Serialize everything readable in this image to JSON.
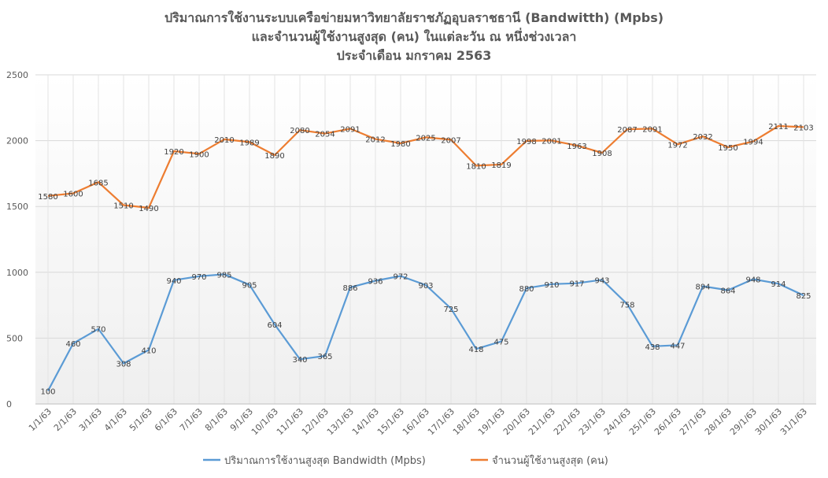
{
  "chart_data": {
    "type": "line",
    "title_lines": [
      "ปริมาณการใช้งานระบบเครือข่ายมหาวิทยาลัยราชภัฏอุบลราชธานี (Bandwitth) (Mpbs)",
      "และจำนวนผู้ใช้งานสูงสุด (คน) ในแต่ละวัน ณ หนึ่งช่วงเวลา",
      "ประจำเดือน มกราคม 2563"
    ],
    "categories": [
      "1/1/63",
      "2/1/63",
      "3/1/63",
      "4/1/63",
      "5/1/63",
      "6/1/63",
      "7/1/63",
      "8/1/63",
      "9/1/63",
      "10/1/63",
      "11/1/63",
      "12/1/63",
      "13/1/63",
      "14/1/63",
      "15/1/63",
      "16/1/63",
      "17/1/63",
      "18/1/63",
      "19/1/63",
      "20/1/63",
      "21/1/63",
      "22/1/63",
      "23/1/63",
      "24/1/63",
      "25/1/63",
      "26/1/63",
      "27/1/63",
      "28/1/63",
      "29/1/63",
      "30/1/63",
      "31/1/63"
    ],
    "ylim": [
      0,
      2500
    ],
    "yticks": [
      0,
      500,
      1000,
      1500,
      2000,
      2500
    ],
    "grid": true,
    "legend_position": "bottom",
    "series": [
      {
        "name": "ปริมาณการใช้งานสูงสุด Bandwidth (Mpbs)",
        "color": "#5b9bd5",
        "values": [
          100,
          460,
          570,
          308,
          410,
          940,
          970,
          985,
          905,
          604,
          340,
          365,
          886,
          936,
          972,
          903,
          725,
          418,
          475,
          880,
          910,
          917,
          943,
          758,
          438,
          447,
          894,
          864,
          948,
          914,
          825
        ]
      },
      {
        "name": "จำนวนผู้ใช้งานสูงสุด (คน)",
        "color": "#ed7d31",
        "values": [
          1580,
          1600,
          1685,
          1510,
          1490,
          1920,
          1900,
          2010,
          1989,
          1890,
          2080,
          2054,
          2091,
          2012,
          1980,
          2025,
          2007,
          1810,
          1819,
          1998,
          2001,
          1963,
          1908,
          2087,
          2091,
          1972,
          2032,
          1950,
          1994,
          2111,
          2103
        ]
      }
    ]
  }
}
